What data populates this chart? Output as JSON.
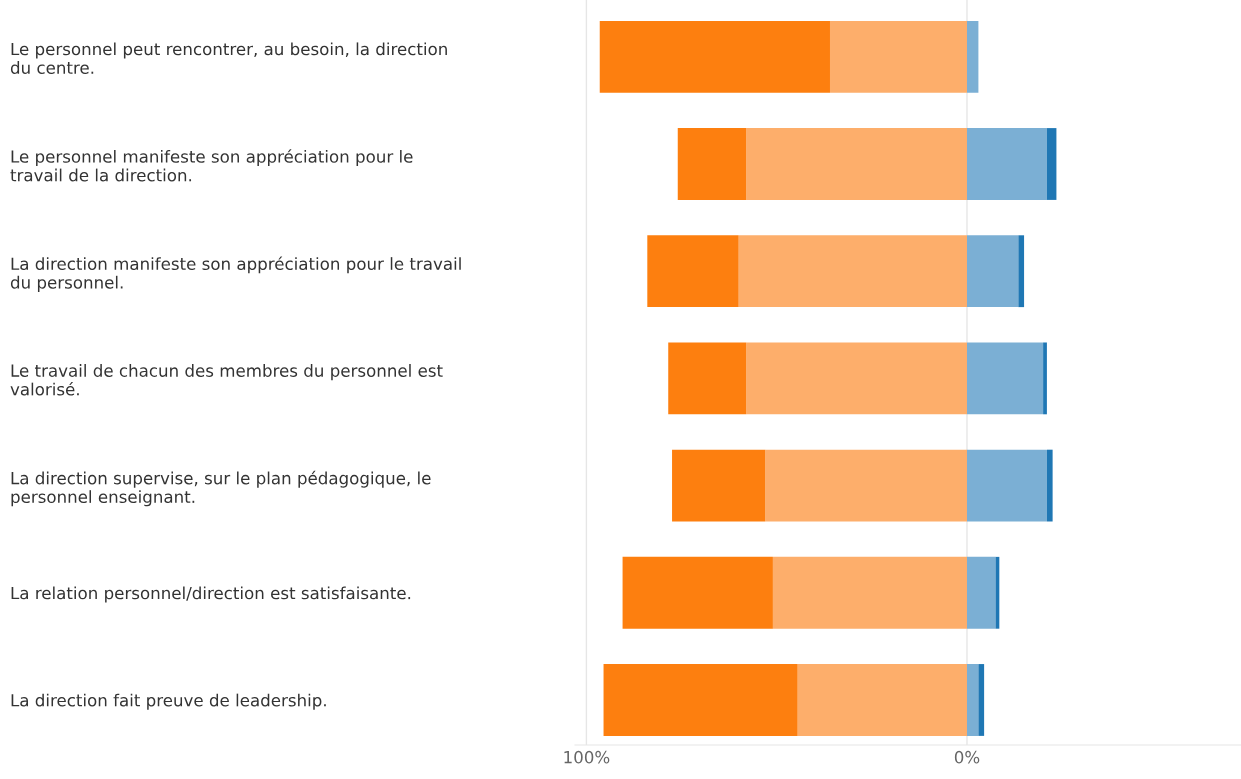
{
  "chart_data": {
    "type": "bar",
    "orientation": "horizontal",
    "stacked": true,
    "categories": [
      "Le personnel peut rencontrer, au besoin, la direction\ndu centre.",
      "Le personnel manifeste son appréciation pour le\ntravail de la direction.",
      "La direction manifeste son appréciation pour le travail\ndu personnel.",
      "Le travail de chacun des membres du personnel est\nvalorisé.",
      "La direction supervise, sur le plan pédagogique, le\npersonnel enseignant.",
      "La relation personnel/direction est satisfaisante.",
      "La direction fait preuve de leadership."
    ],
    "series": [
      {
        "color": "#fdae6b",
        "values": [
          -36,
          -58,
          -60,
          -58,
          -53,
          -51,
          -44.5
        ]
      },
      {
        "color": "#fd7f0f",
        "values": [
          -60.5,
          -18,
          -24,
          -20.5,
          -24.5,
          -39.5,
          -51
        ]
      },
      {
        "color": "#7bafd4",
        "values": [
          3,
          21,
          13.5,
          20,
          21,
          7.5,
          3
        ]
      },
      {
        "color": "#1f77b4",
        "values": [
          null,
          2.5,
          1.5,
          1,
          1.5,
          1,
          1.5
        ]
      }
    ],
    "xlim": [
      -103,
      72
    ],
    "xticks": [
      {
        "value": -100,
        "label": "100%"
      },
      {
        "value": 0,
        "label": "0%"
      }
    ],
    "grid": "x"
  }
}
